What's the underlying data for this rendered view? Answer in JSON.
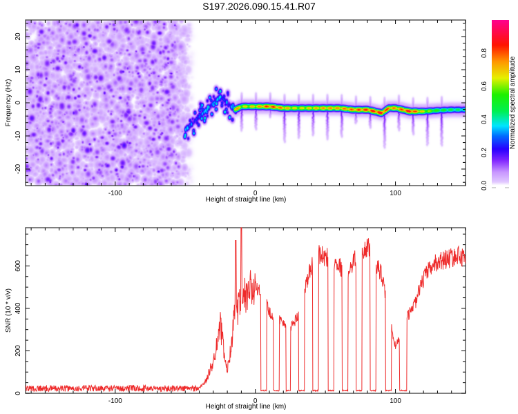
{
  "title": "S197.2026.090.15.41.R07",
  "chart_data": [
    {
      "type": "heatmap",
      "name": "spectrogram",
      "title": "S197.2026.090.15.41.R07",
      "xlabel": "Height of straight line (km)",
      "ylabel": "Frequency (Hz)",
      "xlim": [
        -164,
        150
      ],
      "ylim": [
        -25,
        25
      ],
      "xticks": [
        -100,
        0,
        100
      ],
      "yticks": [
        -20,
        -10,
        0,
        10,
        20
      ],
      "colorbar": {
        "label": "Normalized spectral amplitude",
        "range": [
          0,
          1
        ],
        "ticks": [
          "0.0",
          "0.2",
          "0.4",
          "0.6",
          "0.8"
        ],
        "colors": [
          "#ffffff",
          "#d9b3ff",
          "#8000ff",
          "#0000ff",
          "#0080ff",
          "#00ffff",
          "#00ff40",
          "#40ff00",
          "#ffff00",
          "#ff8000",
          "#ff0000",
          "#ff0080"
        ]
      },
      "noise_region_km": [
        -164,
        -50
      ],
      "signal_ridge": {
        "x": [
          -50,
          -40,
          -30,
          -25,
          -20,
          -15,
          -10,
          0,
          10,
          20,
          30,
          40,
          50,
          60,
          70,
          80,
          90,
          95,
          100,
          110,
          120,
          130,
          140,
          150
        ],
        "freq": [
          -8,
          -4,
          0,
          2,
          0,
          -2,
          -1,
          -1,
          -1,
          -1.5,
          -1.5,
          -1.5,
          -1.5,
          -1.5,
          -2,
          -2,
          -3,
          -1.5,
          -1.5,
          -2.5,
          -2.5,
          -2.2,
          -2,
          -2
        ],
        "amp": [
          0.35,
          0.4,
          0.45,
          0.45,
          0.55,
          0.85,
          0.7,
          0.75,
          0.9,
          0.8,
          0.7,
          0.75,
          0.8,
          0.8,
          0.85,
          0.9,
          0.95,
          0.85,
          0.8,
          0.95,
          0.7,
          0.55,
          0.5,
          0.45
        ]
      }
    },
    {
      "type": "line",
      "name": "snr",
      "xlabel": "Height of straight line (km)",
      "ylabel": "SNR (10 * v/v)",
      "xlim": [
        -164,
        150
      ],
      "ylim": [
        0,
        780
      ],
      "xticks": [
        -100,
        0,
        100
      ],
      "yticks": [
        0,
        200,
        400,
        600
      ],
      "color": "#ee2a2a",
      "envelope": {
        "x": [
          -164,
          -40,
          -35,
          -30,
          -25,
          -22,
          -20,
          -15,
          -10,
          -5,
          0,
          2,
          5,
          8,
          10,
          15,
          20,
          25,
          30,
          35,
          40,
          45,
          50,
          55,
          60,
          65,
          70,
          75,
          80,
          85,
          90,
          95,
          100,
          105,
          110,
          115,
          120,
          125,
          130,
          140,
          150
        ],
        "y": [
          25,
          25,
          60,
          150,
          320,
          180,
          100,
          350,
          420,
          480,
          500,
          480,
          470,
          420,
          380,
          360,
          330,
          310,
          360,
          480,
          600,
          660,
          640,
          640,
          600,
          560,
          620,
          680,
          690,
          620,
          560,
          380,
          220,
          300,
          380,
          440,
          540,
          590,
          620,
          640,
          650
        ]
      },
      "dropouts_km": [
        [
          4,
          8
        ],
        [
          13,
          17
        ],
        [
          22,
          25
        ],
        [
          31,
          35
        ],
        [
          41,
          45
        ],
        [
          52,
          56
        ],
        [
          62,
          66
        ],
        [
          72,
          76
        ],
        [
          82,
          86
        ],
        [
          93,
          97
        ],
        [
          103,
          108
        ]
      ],
      "dropout_level": 10,
      "spikes": [
        {
          "x": -10,
          "y": 780
        },
        {
          "x": -14,
          "y": 720
        }
      ]
    }
  ]
}
